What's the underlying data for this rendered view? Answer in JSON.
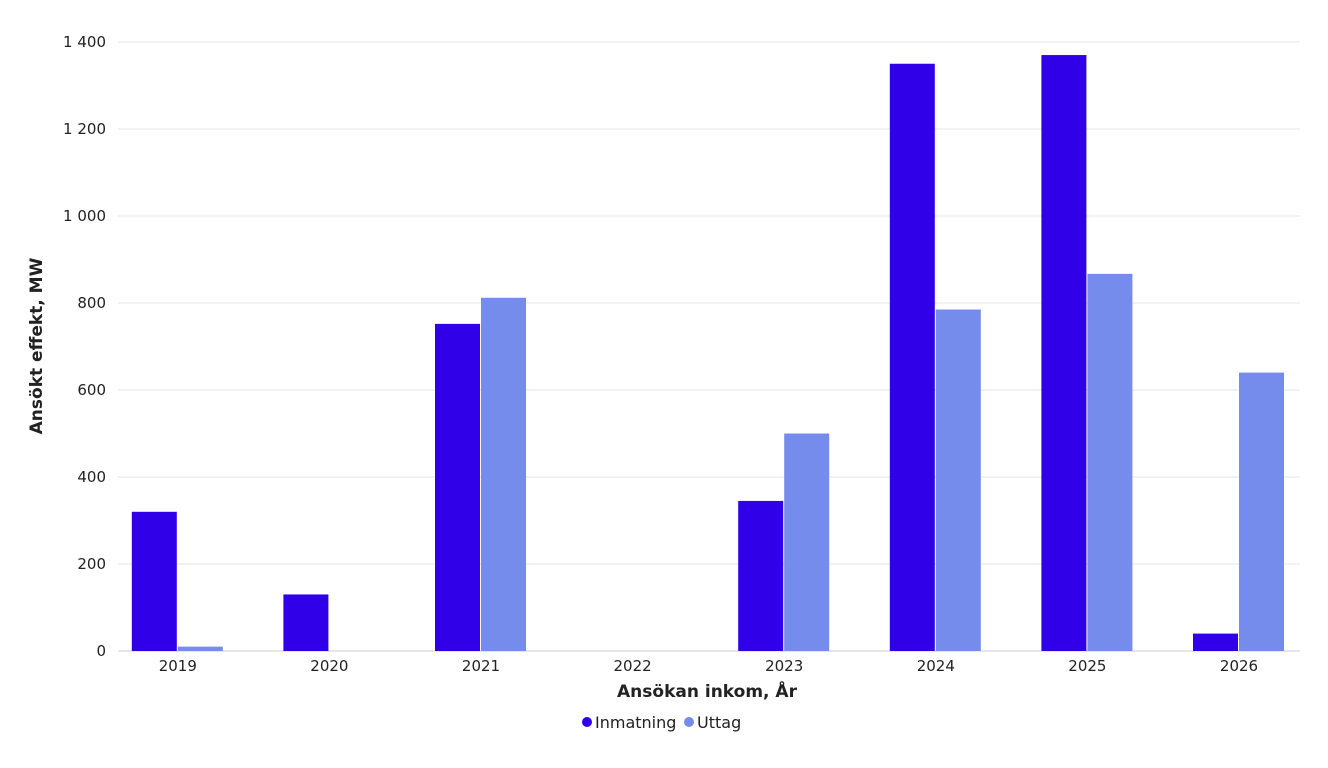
{
  "chart_data": {
    "type": "bar",
    "title": "",
    "xlabel": "Ansökan inkom, År",
    "ylabel": "Ansökt effekt, MW",
    "categories": [
      "2019",
      "2020",
      "2021",
      "2022",
      "2023",
      "2024",
      "2025",
      "2026"
    ],
    "series": [
      {
        "name": "Inmatning",
        "color": "#2f00e8",
        "values": [
          320,
          130,
          752,
          0,
          345,
          1350,
          1370,
          40
        ]
      },
      {
        "name": "Uttag",
        "color": "#758cec",
        "values": [
          10,
          0,
          812,
          0,
          500,
          785,
          867,
          640
        ]
      }
    ],
    "ylim": [
      0,
      1400
    ],
    "yticks": [
      0,
      200,
      400,
      600,
      800,
      1000,
      1200,
      1400
    ],
    "ytick_labels": [
      "0",
      "200",
      "400",
      "600",
      "800",
      "1 000",
      "1 200",
      "1 400"
    ],
    "grid": true,
    "legend_position": "bottom-center"
  }
}
